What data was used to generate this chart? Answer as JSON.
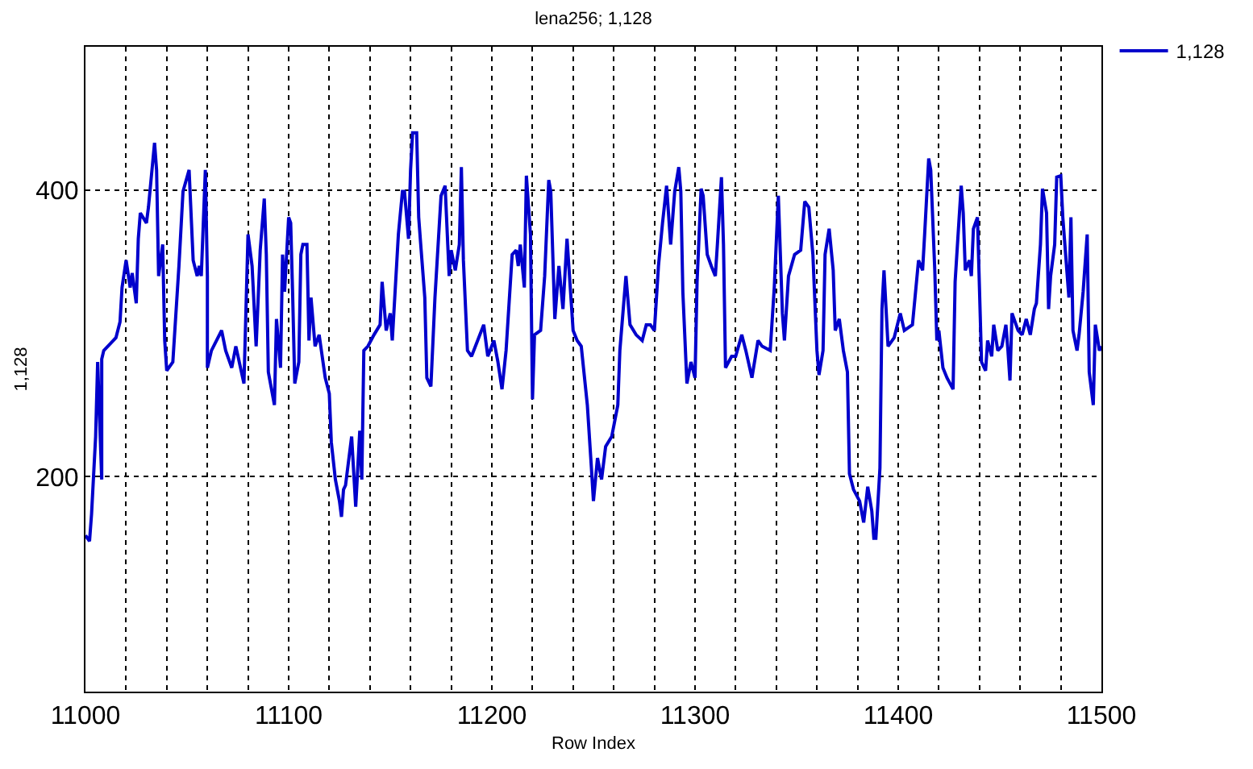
{
  "chart_data": {
    "type": "line",
    "title": "lena256; 1,128",
    "xlabel": "Row Index",
    "ylabel": "1,128",
    "xlim": [
      11000,
      11500
    ],
    "ylim": [
      50,
      500
    ],
    "xticks": [
      11000,
      {
        "value": 11020,
        "label": null
      },
      {
        "value": 11040,
        "label": null
      },
      {
        "value": 11060,
        "label": null
      },
      {
        "value": 11080,
        "label": null
      },
      11100,
      {
        "value": 11120,
        "label": null
      },
      {
        "value": 11140,
        "label": null
      },
      {
        "value": 11160,
        "label": null
      },
      {
        "value": 11180,
        "label": null
      },
      11200,
      {
        "value": 11220,
        "label": null
      },
      {
        "value": 11240,
        "label": null
      },
      {
        "value": 11260,
        "label": null
      },
      {
        "value": 11280,
        "label": null
      },
      11300,
      {
        "value": 11320,
        "label": null
      },
      {
        "value": 11340,
        "label": null
      },
      {
        "value": 11360,
        "label": null
      },
      {
        "value": 11380,
        "label": null
      },
      11400,
      {
        "value": 11420,
        "label": null
      },
      {
        "value": 11440,
        "label": null
      },
      {
        "value": 11460,
        "label": null
      },
      {
        "value": 11480,
        "label": null
      },
      11500
    ],
    "yticks": [
      200,
      400
    ],
    "grid": true,
    "legend": "top right",
    "series": [
      {
        "name": "1,128",
        "color": "#0000cc",
        "x": [
          11000,
          11002,
          11003,
          11005,
          11006,
          11008,
          11008,
          11009,
          11011,
          11015,
          11017,
          11018,
          11020,
          11022,
          11023,
          11025,
          11026,
          11027,
          11030,
          11031,
          11034,
          11035,
          11036,
          11038,
          11039,
          11040,
          11043,
          11046,
          11048,
          11051,
          11053,
          11055,
          11056,
          11057,
          11059,
          11060,
          11060,
          11062,
          11067,
          11069,
          11072,
          11074,
          11078,
          11080,
          11082,
          11084,
          11086,
          11088,
          11089,
          11090,
          11093,
          11094,
          11096,
          11097,
          11098,
          11100,
          11101,
          11102,
          11103,
          11105,
          11106,
          11107,
          11109,
          11110,
          11111,
          11113,
          11115,
          11118,
          11120,
          11121,
          11123,
          11125,
          11126,
          11127,
          11128,
          11131,
          11133,
          11135,
          11136,
          11137,
          11139,
          11142,
          11145,
          11146,
          11148,
          11150,
          11151,
          11154,
          11156,
          11157,
          11159,
          11160,
          11161,
          11163,
          11164,
          11165,
          11167,
          11168,
          11170,
          11172,
          11175,
          11177,
          11179,
          11180,
          11182,
          11184,
          11185,
          11186,
          11188,
          11190,
          11193,
          11196,
          11198,
          11201,
          11203,
          11205,
          11207,
          11210,
          11212,
          11213,
          11214,
          11216,
          11217,
          11219,
          11220,
          11221,
          11224,
          11226,
          11228,
          11229,
          11231,
          11233,
          11235,
          11237,
          11240,
          11242,
          11244,
          11247,
          11249,
          11250,
          11252,
          11254,
          11256,
          11259,
          11262,
          11263,
          11266,
          11268,
          11271,
          11274,
          11276,
          11278,
          11280,
          11282,
          11284,
          11286,
          11288,
          11290,
          11292,
          11293,
          11294,
          11296,
          11298,
          11300,
          11301,
          11303,
          11304,
          11306,
          11308,
          11310,
          11311,
          11313,
          11314,
          11315,
          11318,
          11320,
          11323,
          11325,
          11328,
          11331,
          11333,
          11337,
          11339,
          11341,
          11343,
          11344,
          11346,
          11349,
          11352,
          11354,
          11356,
          11358,
          11360,
          11361,
          11363,
          11364,
          11366,
          11368,
          11369,
          11371,
          11373,
          11375,
          11376,
          11378,
          11381,
          11383,
          11385,
          11387,
          11388,
          11389,
          11391,
          11392,
          11393,
          11395,
          11398,
          11401,
          11403,
          11407,
          11410,
          11412,
          11413,
          11415,
          11416,
          11418,
          11419,
          11420,
          11422,
          11424,
          11427,
          11428,
          11430,
          11431,
          11432,
          11433,
          11435,
          11436,
          11437,
          11439,
          11441,
          11443,
          11444,
          11446,
          11447,
          11449,
          11451,
          11453,
          11454,
          11455,
          11456,
          11459,
          11461,
          11463,
          11465,
          11467,
          11468,
          11470,
          11471,
          11473,
          11474,
          11475,
          11477,
          11478,
          11480,
          11481,
          11484,
          11485,
          11486,
          11488,
          11489,
          11491,
          11493,
          11494,
          11496,
          11497,
          11499,
          11500
        ],
        "values": [
          159,
          155,
          174,
          228,
          280,
          198,
          282,
          288,
          291,
          297,
          308,
          332,
          351,
          332,
          342,
          321,
          366,
          384,
          377,
          388,
          433,
          414,
          340,
          362,
          295,
          274,
          280,
          347,
          399,
          414,
          351,
          340,
          347,
          340,
          414,
          340,
          276,
          288,
          302,
          288,
          276,
          291,
          265,
          369,
          347,
          291,
          358,
          394,
          355,
          273,
          250,
          310,
          276,
          355,
          329,
          381,
          377,
          325,
          265,
          280,
          355,
          362,
          362,
          295,
          325,
          291,
          299,
          269,
          258,
          224,
          198,
          183,
          172,
          191,
          194,
          228,
          179,
          232,
          198,
          288,
          291,
          299,
          306,
          336,
          302,
          314,
          295,
          369,
          399,
          399,
          366,
          414,
          440,
          440,
          381,
          362,
          325,
          269,
          263,
          325,
          396,
          403,
          340,
          358,
          344,
          362,
          416,
          351,
          288,
          284,
          295,
          306,
          284,
          295,
          280,
          261,
          288,
          355,
          358,
          347,
          362,
          332,
          410,
          369,
          254,
          299,
          302,
          340,
          407,
          399,
          310,
          347,
          317,
          366,
          302,
          295,
          291,
          250,
          206,
          183,
          213,
          198,
          221,
          228,
          250,
          288,
          340,
          306,
          299,
          295,
          306,
          306,
          302,
          347,
          377,
          403,
          362,
          399,
          416,
          399,
          329,
          265,
          280,
          269,
          336,
          401,
          396,
          355,
          347,
          340,
          362,
          409,
          362,
          276,
          284,
          284,
          299,
          288,
          269,
          295,
          291,
          288,
          332,
          396,
          314,
          295,
          340,
          355,
          358,
          392,
          388,
          355,
          288,
          271,
          288,
          355,
          373,
          344,
          302,
          310,
          288,
          273,
          202,
          191,
          183,
          168,
          193,
          176,
          157,
          157,
          206,
          317,
          344,
          291,
          297,
          314,
          302,
          306,
          351,
          344,
          369,
          422,
          414,
          344,
          295,
          302,
          276,
          269,
          261,
          336,
          381,
          403,
          384,
          344,
          351,
          340,
          373,
          381,
          280,
          274,
          295,
          284,
          306,
          288,
          291,
          306,
          288,
          267,
          314,
          302,
          299,
          310,
          299,
          317,
          321,
          362,
          401,
          384,
          317,
          340,
          362,
          409,
          410,
          381,
          325,
          381,
          302,
          288,
          299,
          329,
          369,
          273,
          250,
          306,
          288,
          291
        ]
      }
    ]
  }
}
